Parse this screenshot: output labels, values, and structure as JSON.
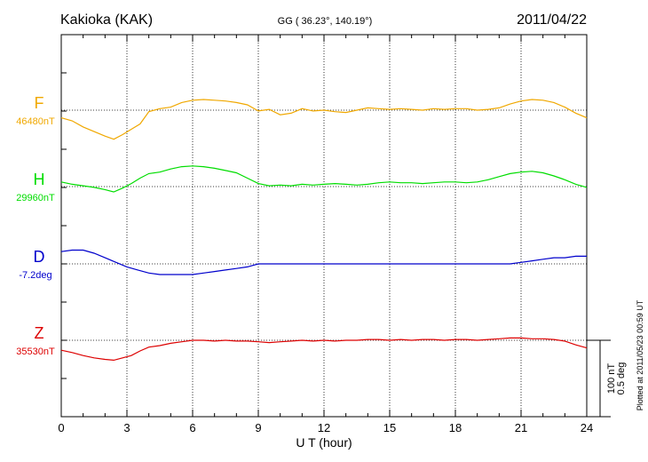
{
  "header": {
    "station": "Kakioka (KAK)",
    "coords": "GG ( 36.23°, 140.19°)",
    "date": "2011/04/22"
  },
  "footer": {
    "plotted_note": "Plotted at 2011/05/23 00:59 UT",
    "scale_nt": "100 nT",
    "scale_deg": "0.5 deg"
  },
  "chart_data": {
    "type": "line",
    "xlabel": "U T (hour)",
    "xlim": [
      0,
      24
    ],
    "xticks": [
      "0",
      "3",
      "6",
      "9",
      "12",
      "15",
      "18",
      "21",
      "24"
    ],
    "grid": true,
    "series": [
      {
        "name": "F",
        "baseline_label": "46480nT",
        "color": "#f0a800",
        "unit": "nT",
        "baseline": 46480,
        "x": [
          0,
          0.5,
          1.0,
          1.5,
          2.0,
          2.4,
          2.8,
          3.2,
          3.6,
          4.0,
          4.5,
          5.0,
          5.5,
          6.0,
          6.5,
          7.0,
          7.5,
          8.0,
          8.5,
          9.0,
          9.5,
          10.0,
          10.5,
          11.0,
          11.5,
          12.0,
          12.5,
          13.0,
          13.5,
          14.0,
          14.5,
          15.0,
          15.5,
          16.0,
          16.5,
          17.0,
          17.5,
          18.0,
          18.5,
          19.0,
          19.5,
          20.0,
          20.5,
          21.0,
          21.5,
          22.0,
          22.5,
          23.0,
          23.5,
          24.0
        ],
        "y": [
          46470,
          46466,
          46458,
          46452,
          46446,
          46442,
          46448,
          46455,
          46462,
          46478,
          46482,
          46484,
          46490,
          46493,
          46494,
          46493,
          46492,
          46490,
          46487,
          46479,
          46481,
          46474,
          46476,
          46482,
          46479,
          46480,
          46478,
          46477,
          46480,
          46483,
          46482,
          46481,
          46482,
          46481,
          46480,
          46482,
          46481,
          46482,
          46482,
          46480,
          46481,
          46483,
          46488,
          46492,
          46494,
          46493,
          46490,
          46484,
          46476,
          46470
        ]
      },
      {
        "name": "H",
        "baseline_label": "29960nT",
        "color": "#00dd00",
        "unit": "nT",
        "baseline": 29960,
        "x": [
          0,
          0.5,
          1.0,
          1.5,
          2.0,
          2.4,
          2.8,
          3.2,
          3.6,
          4.0,
          4.5,
          5.0,
          5.5,
          6.0,
          6.5,
          7.0,
          7.5,
          8.0,
          8.5,
          9.0,
          9.5,
          10.0,
          10.5,
          11.0,
          11.5,
          12.0,
          12.5,
          13.0,
          13.5,
          14.0,
          14.5,
          15.0,
          15.5,
          16.0,
          16.5,
          17.0,
          17.5,
          18.0,
          18.5,
          19.0,
          19.5,
          20.0,
          20.5,
          21.0,
          21.5,
          22.0,
          22.5,
          23.0,
          23.5,
          24.0
        ],
        "y": [
          29966,
          29963,
          29961,
          29959,
          29956,
          29953,
          29958,
          29964,
          29971,
          29977,
          29979,
          29983,
          29986,
          29987,
          29986,
          29984,
          29981,
          29978,
          29971,
          29964,
          29961,
          29962,
          29961,
          29963,
          29962,
          29963,
          29964,
          29963,
          29962,
          29963,
          29965,
          29966,
          29965,
          29965,
          29964,
          29965,
          29966,
          29966,
          29965,
          29966,
          29969,
          29973,
          29977,
          29979,
          29980,
          29978,
          29974,
          29969,
          29963,
          29959
        ]
      },
      {
        "name": "D",
        "baseline_label": "-7.2deg",
        "color": "#0000cc",
        "unit": "deg",
        "baseline": -7.2,
        "x": [
          0,
          0.5,
          1.0,
          1.5,
          2.0,
          2.5,
          3.0,
          3.5,
          4.0,
          4.5,
          5.0,
          5.5,
          6.0,
          6.5,
          7.0,
          7.5,
          8.0,
          8.5,
          9.0,
          9.5,
          10.0,
          10.5,
          11.0,
          11.5,
          12.0,
          12.5,
          13.0,
          13.5,
          14.0,
          14.5,
          15.0,
          15.5,
          16.0,
          16.5,
          17.0,
          17.5,
          18.0,
          18.5,
          19.0,
          19.5,
          20.0,
          20.5,
          21.0,
          21.5,
          22.0,
          22.5,
          23.0,
          23.5,
          24.0
        ],
        "y": [
          -7.12,
          -7.11,
          -7.11,
          -7.13,
          -7.16,
          -7.19,
          -7.22,
          -7.24,
          -7.26,
          -7.27,
          -7.27,
          -7.27,
          -7.27,
          -7.26,
          -7.25,
          -7.24,
          -7.23,
          -7.22,
          -7.2,
          -7.2,
          -7.2,
          -7.2,
          -7.2,
          -7.2,
          -7.2,
          -7.2,
          -7.2,
          -7.2,
          -7.2,
          -7.2,
          -7.2,
          -7.2,
          -7.2,
          -7.2,
          -7.2,
          -7.2,
          -7.2,
          -7.2,
          -7.2,
          -7.2,
          -7.2,
          -7.2,
          -7.19,
          -7.18,
          -7.17,
          -7.16,
          -7.16,
          -7.15,
          -7.15
        ]
      },
      {
        "name": "Z",
        "baseline_label": "35530nT",
        "color": "#dd0000",
        "unit": "nT",
        "baseline": 35530,
        "x": [
          0,
          0.5,
          1.0,
          1.5,
          2.0,
          2.4,
          2.8,
          3.2,
          3.6,
          4.0,
          4.5,
          5.0,
          5.5,
          6.0,
          6.5,
          7.0,
          7.5,
          8.0,
          8.5,
          9.0,
          9.5,
          10.0,
          10.5,
          11.0,
          11.5,
          12.0,
          12.5,
          13.0,
          13.5,
          14.0,
          14.5,
          15.0,
          15.5,
          16.0,
          16.5,
          17.0,
          17.5,
          18.0,
          18.5,
          19.0,
          19.5,
          20.0,
          20.5,
          21.0,
          21.5,
          22.0,
          22.5,
          23.0,
          23.5,
          24.0
        ],
        "y": [
          35517,
          35514,
          35510,
          35507,
          35505,
          35504,
          35507,
          35510,
          35516,
          35521,
          35523,
          35526,
          35528,
          35530,
          35530,
          35529,
          35530,
          35529,
          35529,
          35528,
          35527,
          35528,
          35529,
          35530,
          35529,
          35530,
          35529,
          35530,
          35530,
          35531,
          35531,
          35530,
          35531,
          35530,
          35531,
          35531,
          35530,
          35531,
          35531,
          35530,
          35531,
          35532,
          35533,
          35533,
          35532,
          35532,
          35531,
          35529,
          35524,
          35520
        ]
      }
    ]
  }
}
